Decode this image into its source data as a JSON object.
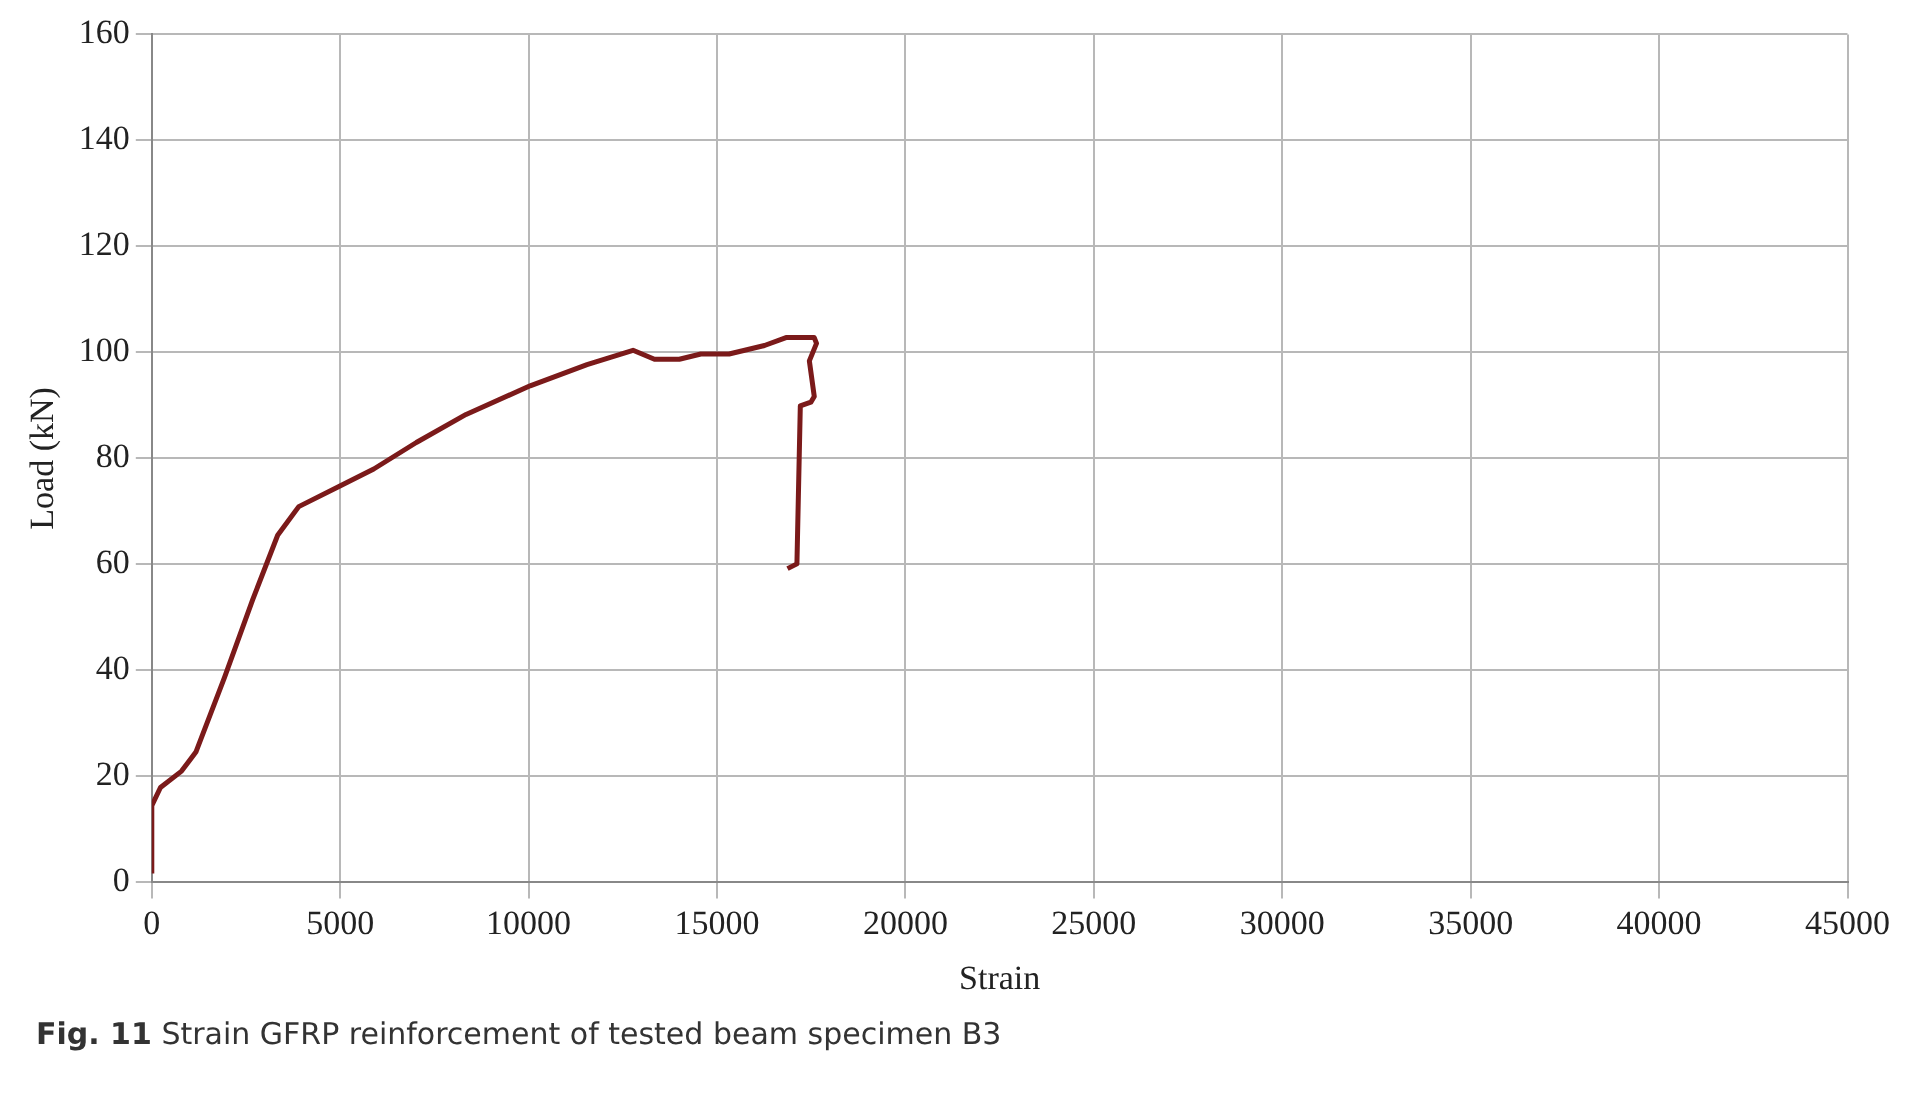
{
  "chart_data": {
    "type": "line",
    "xlabel": "Strain",
    "ylabel": "Load (kN)",
    "annotations": [
      "Fig. 11 Strain GFRP reinforcement of tested beam specimen B3"
    ],
    "xlim": [
      0,
      45000
    ],
    "xticks": [
      0,
      5000,
      10000,
      15000,
      20000,
      25000,
      30000,
      35000,
      40000,
      45000
    ],
    "ylim": [
      0,
      160
    ],
    "yticks": [
      0,
      20,
      40,
      60,
      80,
      100,
      120,
      140,
      160
    ],
    "grid": true,
    "legend": false,
    "marker": "none",
    "line_style": "solid",
    "series": [
      {
        "color": "#7b1a1a",
        "x": [
          0,
          0,
          230,
          790,
          1170,
          1930,
          2680,
          3340,
          3900,
          4940,
          5890,
          7020,
          8340,
          10040,
          11550,
          12770,
          13340,
          14000,
          14570,
          15320,
          16260,
          16830,
          17580,
          17640,
          17450,
          17580,
          17490,
          17210,
          17120,
          16870
        ],
        "values": [
          1.7,
          14.5,
          17.9,
          21,
          24.6,
          38.7,
          53.4,
          65.5,
          70.9,
          74.6,
          78,
          83,
          88.3,
          93.7,
          97.7,
          100.4,
          98.7,
          98.7,
          99.7,
          99.7,
          101.3,
          102.8,
          102.8,
          101.7,
          98.4,
          91.7,
          90.6,
          89.9,
          60.1,
          59.2
        ]
      }
    ]
  }
}
